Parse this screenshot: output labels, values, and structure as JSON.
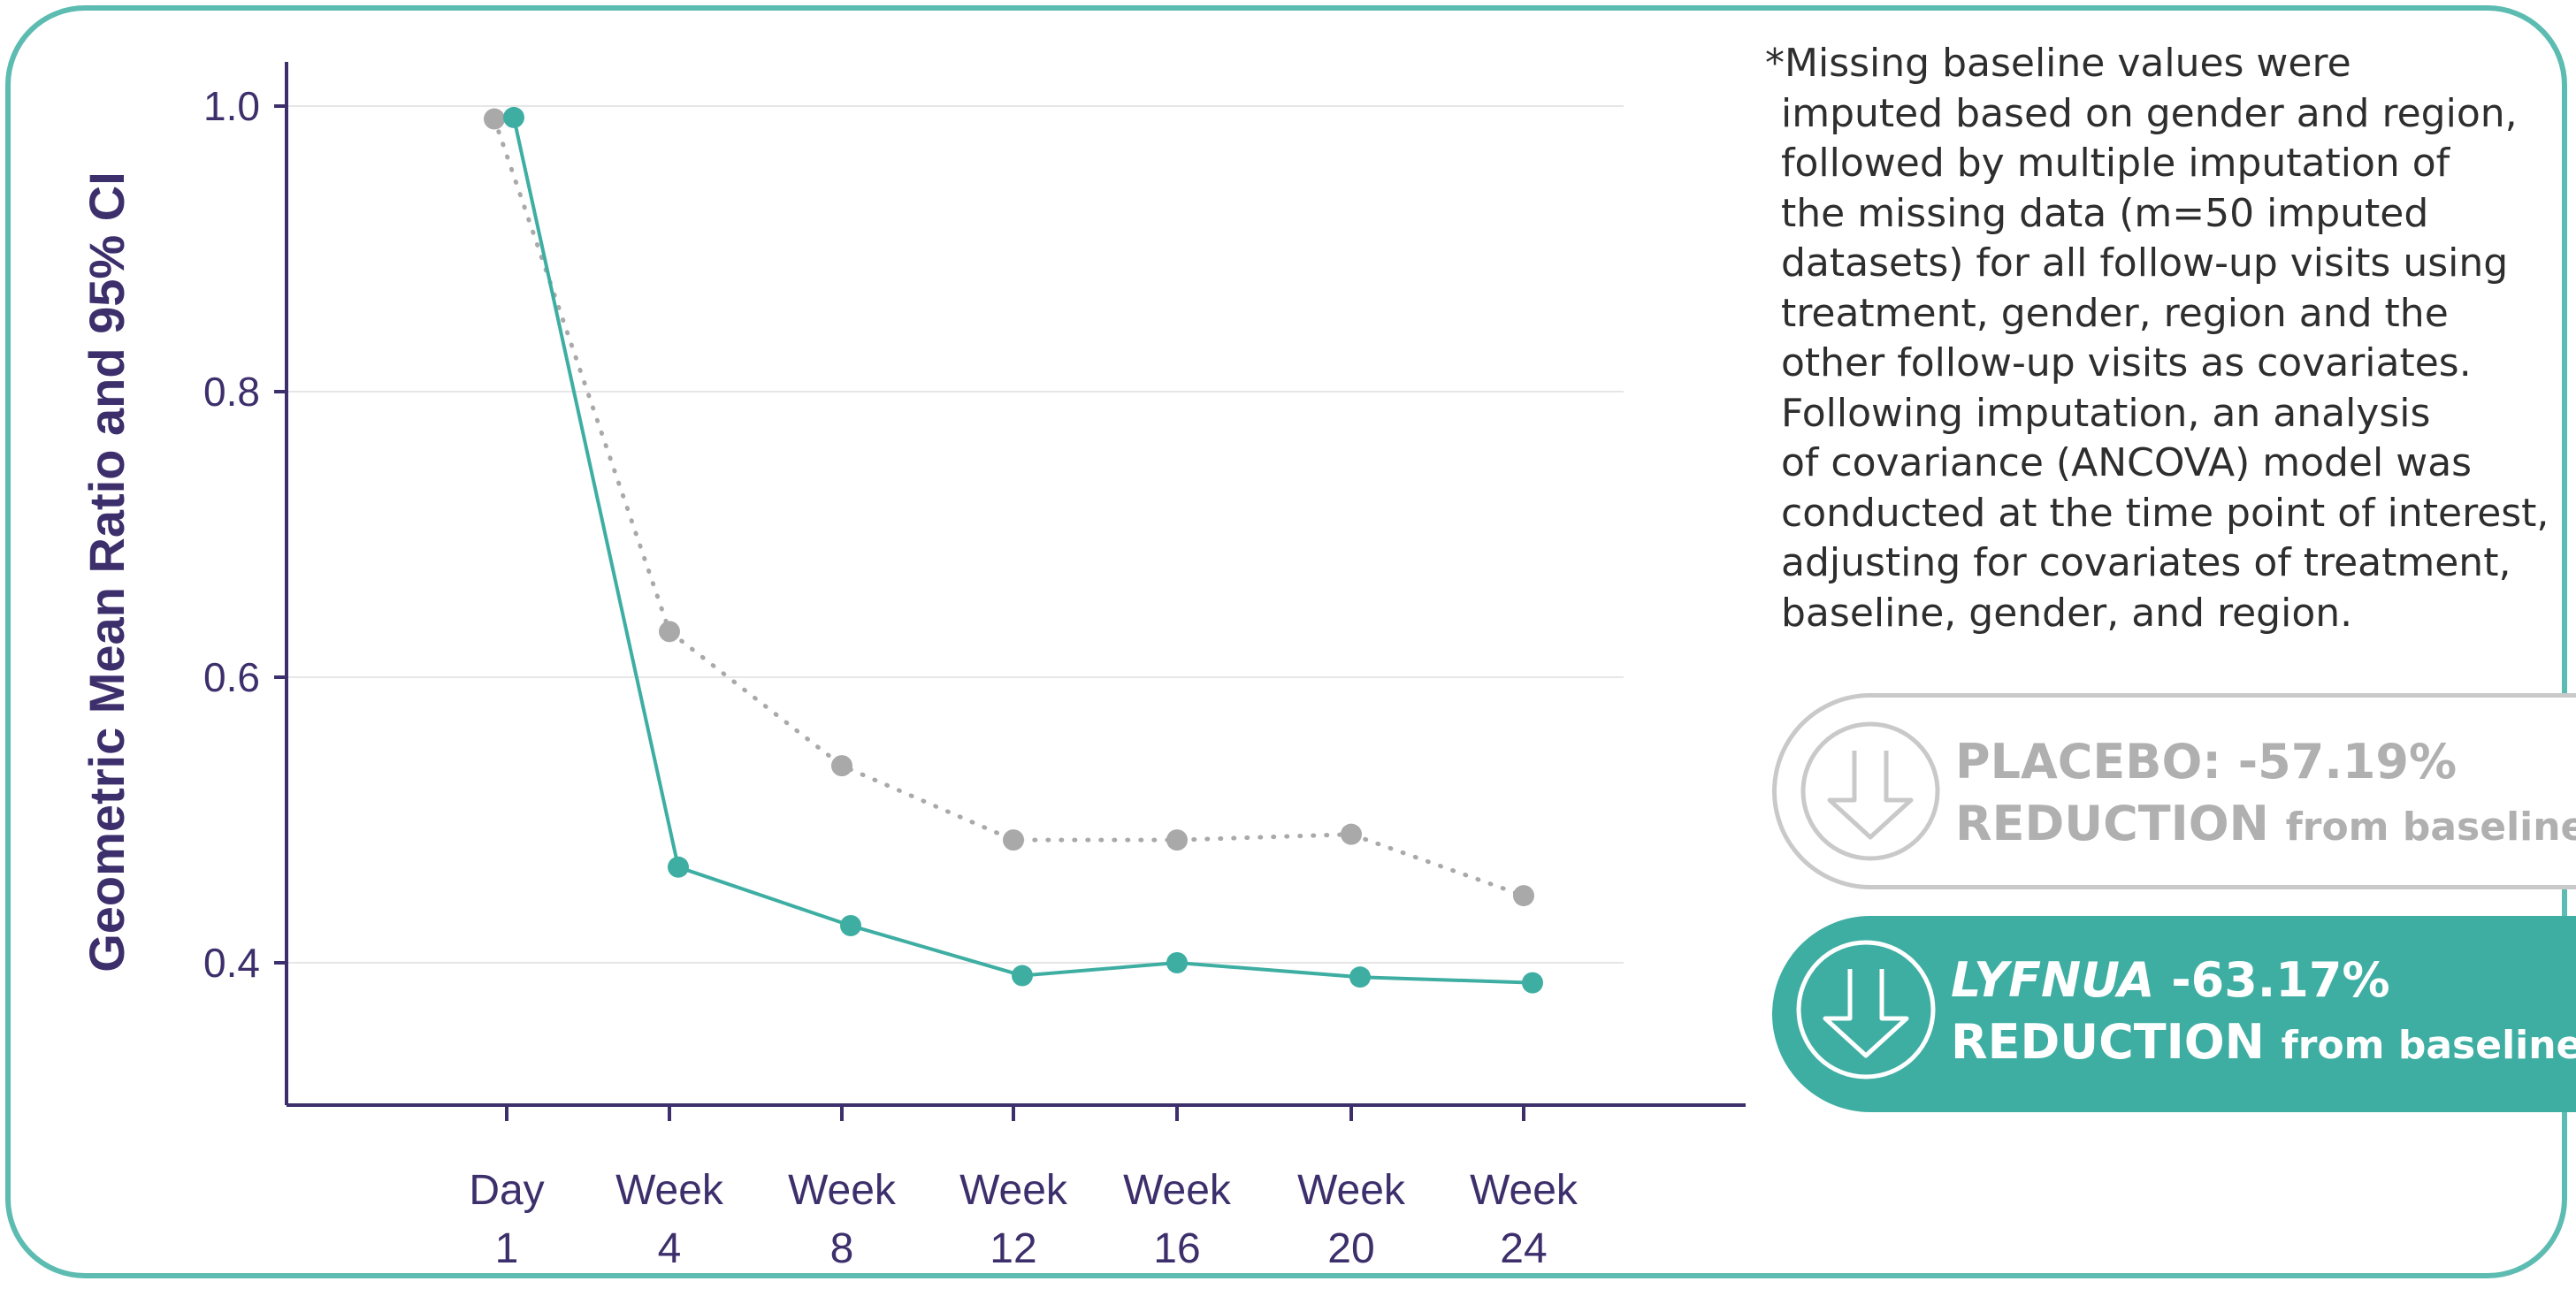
{
  "chart_data": {
    "type": "line",
    "title": "",
    "xlabel": "",
    "ylabel": "Geometric Mean Ratio and 95% CI",
    "categories": [
      [
        "Day",
        "1"
      ],
      [
        "Week",
        "4"
      ],
      [
        "Week",
        "8"
      ],
      [
        "Week",
        "12"
      ],
      [
        "Week",
        "16"
      ],
      [
        "Week",
        "20"
      ],
      [
        "Week",
        "24"
      ]
    ],
    "ylim": [
      0.3,
      1.03
    ],
    "yticks": [
      1.0,
      0.8,
      0.6,
      0.4
    ],
    "ytick_labels": [
      "1.0",
      "0.8",
      "0.6",
      "0.4"
    ],
    "grid": true,
    "series": [
      {
        "name": "Placebo",
        "style": "dotted",
        "color": "#a9a9a9",
        "values": [
          0.991,
          0.632,
          0.538,
          0.486,
          0.486,
          0.49,
          0.447
        ]
      },
      {
        "name": "LYFNUA",
        "style": "solid",
        "color": "#3eaea3",
        "values": [
          0.992,
          0.467,
          0.426,
          0.391,
          0.4,
          0.39,
          0.386
        ]
      }
    ]
  },
  "note": {
    "lines": [
      "*Missing baseline values were",
      "imputed based on gender and region,",
      "followed by multiple imputation of",
      "the missing data (m=50 imputed",
      "datasets) for all follow-up visits using",
      "treatment, gender, region and the",
      "other follow-up visits as covariates.",
      "Following imputation, an analysis",
      "of covariance (ANCOVA) model was",
      "conducted at the time point of interest,",
      "adjusting for covariates of treatment,",
      "baseline, gender, and region."
    ]
  },
  "badges": {
    "placebo": {
      "line1": "PLACEBO: -57.19%",
      "line2_main": "REDUCTION",
      "line2_small": "from baseline",
      "icon": "down-arrow-circle-icon"
    },
    "drug": {
      "brand": "LYFNUA",
      "value": "-63.17%",
      "line2_main": "REDUCTION",
      "line2_small": "from baseline",
      "icon": "down-arrow-circle-icon"
    }
  },
  "colors": {
    "axis": "#3d2f6b",
    "grid": "#e6e6e6",
    "teal": "#3eaea3",
    "gray": "#a9a9a9",
    "border": "#5dbcb1"
  }
}
